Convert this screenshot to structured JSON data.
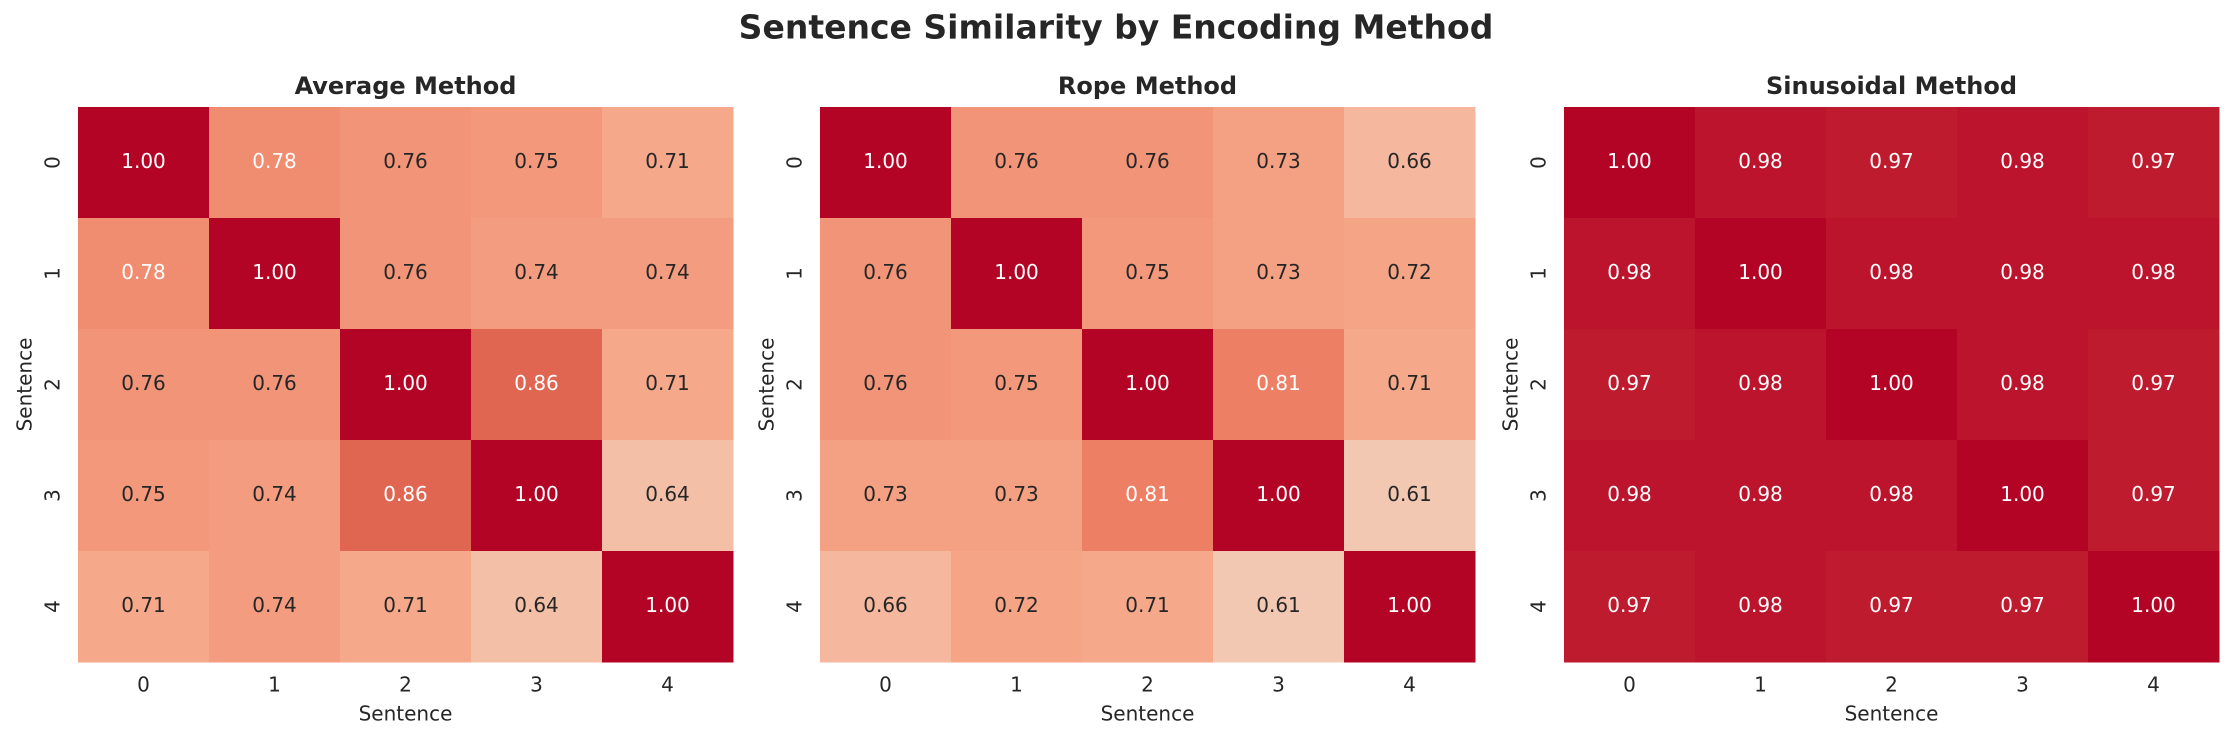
{
  "title": "Sentence Similarity by Encoding Method",
  "chart_data": [
    {
      "type": "heatmap",
      "title": "Average Method",
      "x_label": "Sentence",
      "y_label": "Sentence",
      "x_categories": [
        "0",
        "1",
        "2",
        "3",
        "4"
      ],
      "y_categories": [
        "0",
        "1",
        "2",
        "3",
        "4"
      ],
      "colormap": "coolwarm",
      "clim": [
        0,
        1
      ],
      "values": [
        [
          1,
          0.78,
          0.76,
          0.75,
          0.71
        ],
        [
          0.78,
          1,
          0.76,
          0.74,
          0.74
        ],
        [
          0.76,
          0.76,
          1,
          0.86,
          0.71
        ],
        [
          0.75,
          0.74,
          0.86,
          1,
          0.64
        ],
        [
          0.71,
          0.74,
          0.71,
          0.64,
          1
        ]
      ],
      "value_labels": [
        [
          "1.00",
          "0.78",
          "0.76",
          "0.75",
          "0.71"
        ],
        [
          "0.78",
          "1.00",
          "0.76",
          "0.74",
          "0.74"
        ],
        [
          "0.76",
          "0.76",
          "1.00",
          "0.86",
          "0.71"
        ],
        [
          "0.75",
          "0.74",
          "0.86",
          "1.00",
          "0.64"
        ],
        [
          "0.71",
          "0.74",
          "0.71",
          "0.64",
          "1.00"
        ]
      ]
    },
    {
      "type": "heatmap",
      "title": "Rope Method",
      "x_label": "Sentence",
      "y_label": "Sentence",
      "x_categories": [
        "0",
        "1",
        "2",
        "3",
        "4"
      ],
      "y_categories": [
        "0",
        "1",
        "2",
        "3",
        "4"
      ],
      "colormap": "coolwarm",
      "clim": [
        0,
        1
      ],
      "values": [
        [
          1,
          0.76,
          0.76,
          0.73,
          0.66
        ],
        [
          0.76,
          1,
          0.75,
          0.73,
          0.72
        ],
        [
          0.76,
          0.75,
          1,
          0.81,
          0.71
        ],
        [
          0.73,
          0.73,
          0.81,
          1,
          0.61
        ],
        [
          0.66,
          0.72,
          0.71,
          0.61,
          1
        ]
      ],
      "value_labels": [
        [
          "1.00",
          "0.76",
          "0.76",
          "0.73",
          "0.66"
        ],
        [
          "0.76",
          "1.00",
          "0.75",
          "0.73",
          "0.72"
        ],
        [
          "0.76",
          "0.75",
          "1.00",
          "0.81",
          "0.71"
        ],
        [
          "0.73",
          "0.73",
          "0.81",
          "1.00",
          "0.61"
        ],
        [
          "0.66",
          "0.72",
          "0.71",
          "0.61",
          "1.00"
        ]
      ]
    },
    {
      "type": "heatmap",
      "title": "Sinusoidal Method",
      "x_label": "Sentence",
      "y_label": "Sentence",
      "x_categories": [
        "0",
        "1",
        "2",
        "3",
        "4"
      ],
      "y_categories": [
        "0",
        "1",
        "2",
        "3",
        "4"
      ],
      "colormap": "coolwarm",
      "clim": [
        0,
        1
      ],
      "values": [
        [
          1,
          0.98,
          0.97,
          0.98,
          0.97
        ],
        [
          0.98,
          1,
          0.98,
          0.98,
          0.98
        ],
        [
          0.97,
          0.98,
          1,
          0.98,
          0.97
        ],
        [
          0.98,
          0.98,
          0.98,
          1,
          0.97
        ],
        [
          0.97,
          0.98,
          0.97,
          0.97,
          1
        ]
      ],
      "value_labels": [
        [
          "1.00",
          "0.98",
          "0.97",
          "0.98",
          "0.97"
        ],
        [
          "0.98",
          "1.00",
          "0.98",
          "0.98",
          "0.98"
        ],
        [
          "0.97",
          "0.98",
          "1.00",
          "0.98",
          "0.97"
        ],
        [
          "0.98",
          "0.98",
          "0.98",
          "1.00",
          "0.97"
        ],
        [
          "0.97",
          "0.98",
          "0.97",
          "0.97",
          "1.00"
        ]
      ]
    }
  ]
}
